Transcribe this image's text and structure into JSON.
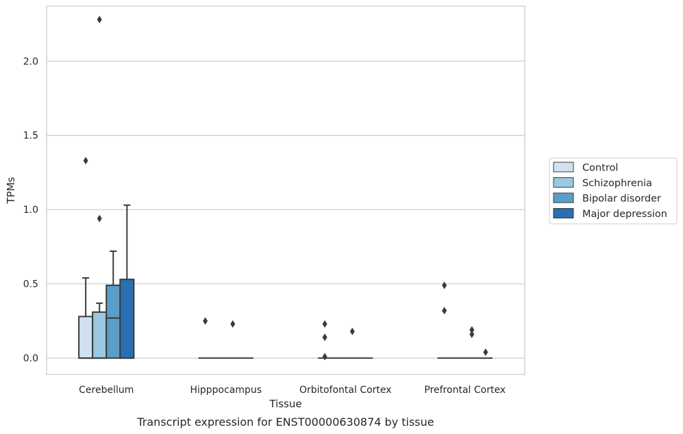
{
  "chart_data": {
    "type": "box",
    "xlabel": "Tissue",
    "ylabel": "TPMs",
    "caption": "Transcript expression for ENST00000630874 by tissue",
    "ylim": [
      -0.11,
      2.37
    ],
    "yticks": [
      0.0,
      0.5,
      1.0,
      1.5,
      2.0
    ],
    "ytick_labels": [
      "0.0",
      "0.5",
      "1.0",
      "1.5",
      "2.0"
    ],
    "grid": "horizontal",
    "legend_position": "right",
    "categories": [
      "Cerebellum",
      "Hipppocampus",
      "Orbitofontal Cortex",
      "Prefrontal Cortex"
    ],
    "series": [
      {
        "name": "Control",
        "color": "#d0e1f2",
        "boxes": [
          {
            "q1": 0.0,
            "median": 0.0,
            "q3": 0.28,
            "whisker_low": 0.0,
            "whisker_high": 0.54,
            "outliers": [
              1.33
            ]
          },
          {
            "q1": 0.0,
            "median": 0.0,
            "q3": 0.0,
            "whisker_low": 0.0,
            "whisker_high": 0.0,
            "outliers": [
              0.25
            ]
          },
          {
            "q1": 0.0,
            "median": 0.0,
            "q3": 0.0,
            "whisker_low": 0.0,
            "whisker_high": 0.0,
            "outliers": [
              0.23,
              0.14,
              0.01
            ]
          },
          {
            "q1": 0.0,
            "median": 0.0,
            "q3": 0.0,
            "whisker_low": 0.0,
            "whisker_high": 0.0,
            "outliers": [
              0.49,
              0.32
            ]
          }
        ]
      },
      {
        "name": "Schizophrenia",
        "color": "#9ac8e0",
        "boxes": [
          {
            "q1": 0.0,
            "median": 0.0,
            "q3": 0.31,
            "whisker_low": 0.0,
            "whisker_high": 0.37,
            "outliers": [
              2.28,
              0.94
            ]
          },
          {
            "q1": 0.0,
            "median": 0.0,
            "q3": 0.0,
            "whisker_low": 0.0,
            "whisker_high": 0.0,
            "outliers": []
          },
          {
            "q1": 0.0,
            "median": 0.0,
            "q3": 0.0,
            "whisker_low": 0.0,
            "whisker_high": 0.0,
            "outliers": []
          },
          {
            "q1": 0.0,
            "median": 0.0,
            "q3": 0.0,
            "whisker_low": 0.0,
            "whisker_high": 0.0,
            "outliers": []
          }
        ]
      },
      {
        "name": "Bipolar disorder",
        "color": "#5a9ec9",
        "boxes": [
          {
            "q1": 0.0,
            "median": 0.27,
            "q3": 0.49,
            "whisker_low": 0.0,
            "whisker_high": 0.72,
            "outliers": []
          },
          {
            "q1": 0.0,
            "median": 0.0,
            "q3": 0.0,
            "whisker_low": 0.0,
            "whisker_high": 0.0,
            "outliers": [
              0.23
            ]
          },
          {
            "q1": 0.0,
            "median": 0.0,
            "q3": 0.0,
            "whisker_low": 0.0,
            "whisker_high": 0.0,
            "outliers": [
              0.18
            ]
          },
          {
            "q1": 0.0,
            "median": 0.0,
            "q3": 0.0,
            "whisker_low": 0.0,
            "whisker_high": 0.0,
            "outliers": [
              0.19,
              0.16
            ]
          }
        ]
      },
      {
        "name": "Major depression",
        "color": "#2a6fb2",
        "boxes": [
          {
            "q1": 0.0,
            "median": 0.0,
            "q3": 0.53,
            "whisker_low": 0.0,
            "whisker_high": 1.03,
            "outliers": []
          },
          {
            "q1": 0.0,
            "median": 0.0,
            "q3": 0.0,
            "whisker_low": 0.0,
            "whisker_high": 0.0,
            "outliers": []
          },
          {
            "q1": 0.0,
            "median": 0.0,
            "q3": 0.0,
            "whisker_low": 0.0,
            "whisker_high": 0.0,
            "outliers": []
          },
          {
            "q1": 0.0,
            "median": 0.0,
            "q3": 0.0,
            "whisker_low": 0.0,
            "whisker_high": 0.0,
            "outliers": [
              0.04
            ]
          }
        ]
      }
    ],
    "style": {
      "edge_color": "#3a3a3a",
      "grid_color": "#cccccc",
      "frame_color": "#cccccc",
      "text_color": "#262626"
    }
  }
}
